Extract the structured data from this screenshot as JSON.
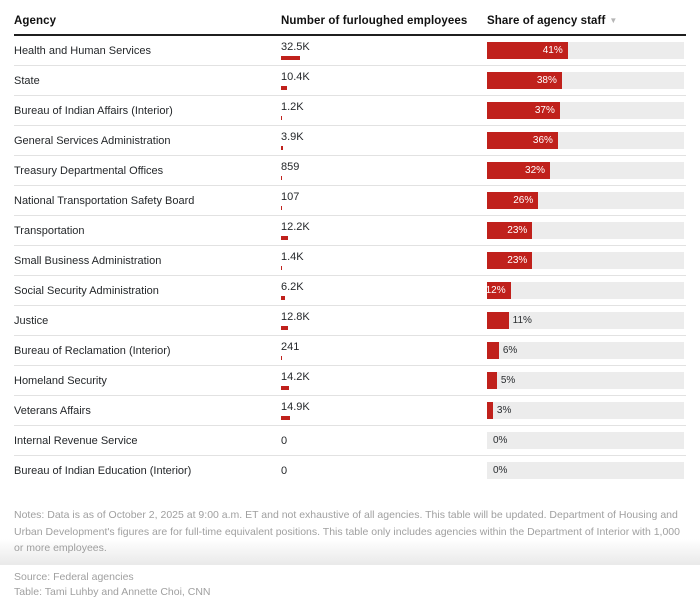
{
  "chart_data": {
    "type": "table",
    "columns": [
      "Agency",
      "Number of furloughed employees",
      "Share of agency staff"
    ],
    "sort": {
      "column": "Share of agency staff",
      "direction": "desc",
      "indicator": "▼"
    },
    "max_furloughed": 32500,
    "rows": [
      {
        "agency": "Health and Human Services",
        "furloughed_label": "32.5K",
        "furloughed": 32500,
        "share_pct": 41
      },
      {
        "agency": "State",
        "furloughed_label": "10.4K",
        "furloughed": 10400,
        "share_pct": 38
      },
      {
        "agency": "Bureau of Indian Affairs (Interior)",
        "furloughed_label": "1.2K",
        "furloughed": 1200,
        "share_pct": 37
      },
      {
        "agency": "General Services Administration",
        "furloughed_label": "3.9K",
        "furloughed": 3900,
        "share_pct": 36
      },
      {
        "agency": "Treasury Departmental Offices",
        "furloughed_label": "859",
        "furloughed": 859,
        "share_pct": 32
      },
      {
        "agency": "National Transportation Safety Board",
        "furloughed_label": "107",
        "furloughed": 107,
        "share_pct": 26
      },
      {
        "agency": "Transportation",
        "furloughed_label": "12.2K",
        "furloughed": 12200,
        "share_pct": 23
      },
      {
        "agency": "Small Business Administration",
        "furloughed_label": "1.4K",
        "furloughed": 1400,
        "share_pct": 23
      },
      {
        "agency": "Social Security Administration",
        "furloughed_label": "6.2K",
        "furloughed": 6200,
        "share_pct": 12
      },
      {
        "agency": "Justice",
        "furloughed_label": "12.8K",
        "furloughed": 12800,
        "share_pct": 11
      },
      {
        "agency": "Bureau of Reclamation (Interior)",
        "furloughed_label": "241",
        "furloughed": 241,
        "share_pct": 6
      },
      {
        "agency": "Homeland Security",
        "furloughed_label": "14.2K",
        "furloughed": 14200,
        "share_pct": 5
      },
      {
        "agency": "Veterans Affairs",
        "furloughed_label": "14.9K",
        "furloughed": 14900,
        "share_pct": 3
      },
      {
        "agency": "Internal Revenue Service",
        "furloughed_label": "0",
        "furloughed": 0,
        "share_pct": 0
      },
      {
        "agency": "Bureau of Indian Education (Interior)",
        "furloughed_label": "0",
        "furloughed": 0,
        "share_pct": 0
      }
    ]
  },
  "footer": {
    "notes": "Notes: Data is as of October 2, 2025 at 9:00 a.m. ET and not exhaustive of all agencies. This table will be updated. Department of Housing and Urban Development's figures are for full-time equivalent positions. This table only includes agencies within the Department of Interior with 1,000 or more employees.",
    "source": "Source: Federal agencies",
    "credit": "Table: Tami Luhby and Annette Choi, CNN"
  },
  "colors": {
    "accent_red": "#c0211c",
    "bar_track": "#ececec"
  }
}
